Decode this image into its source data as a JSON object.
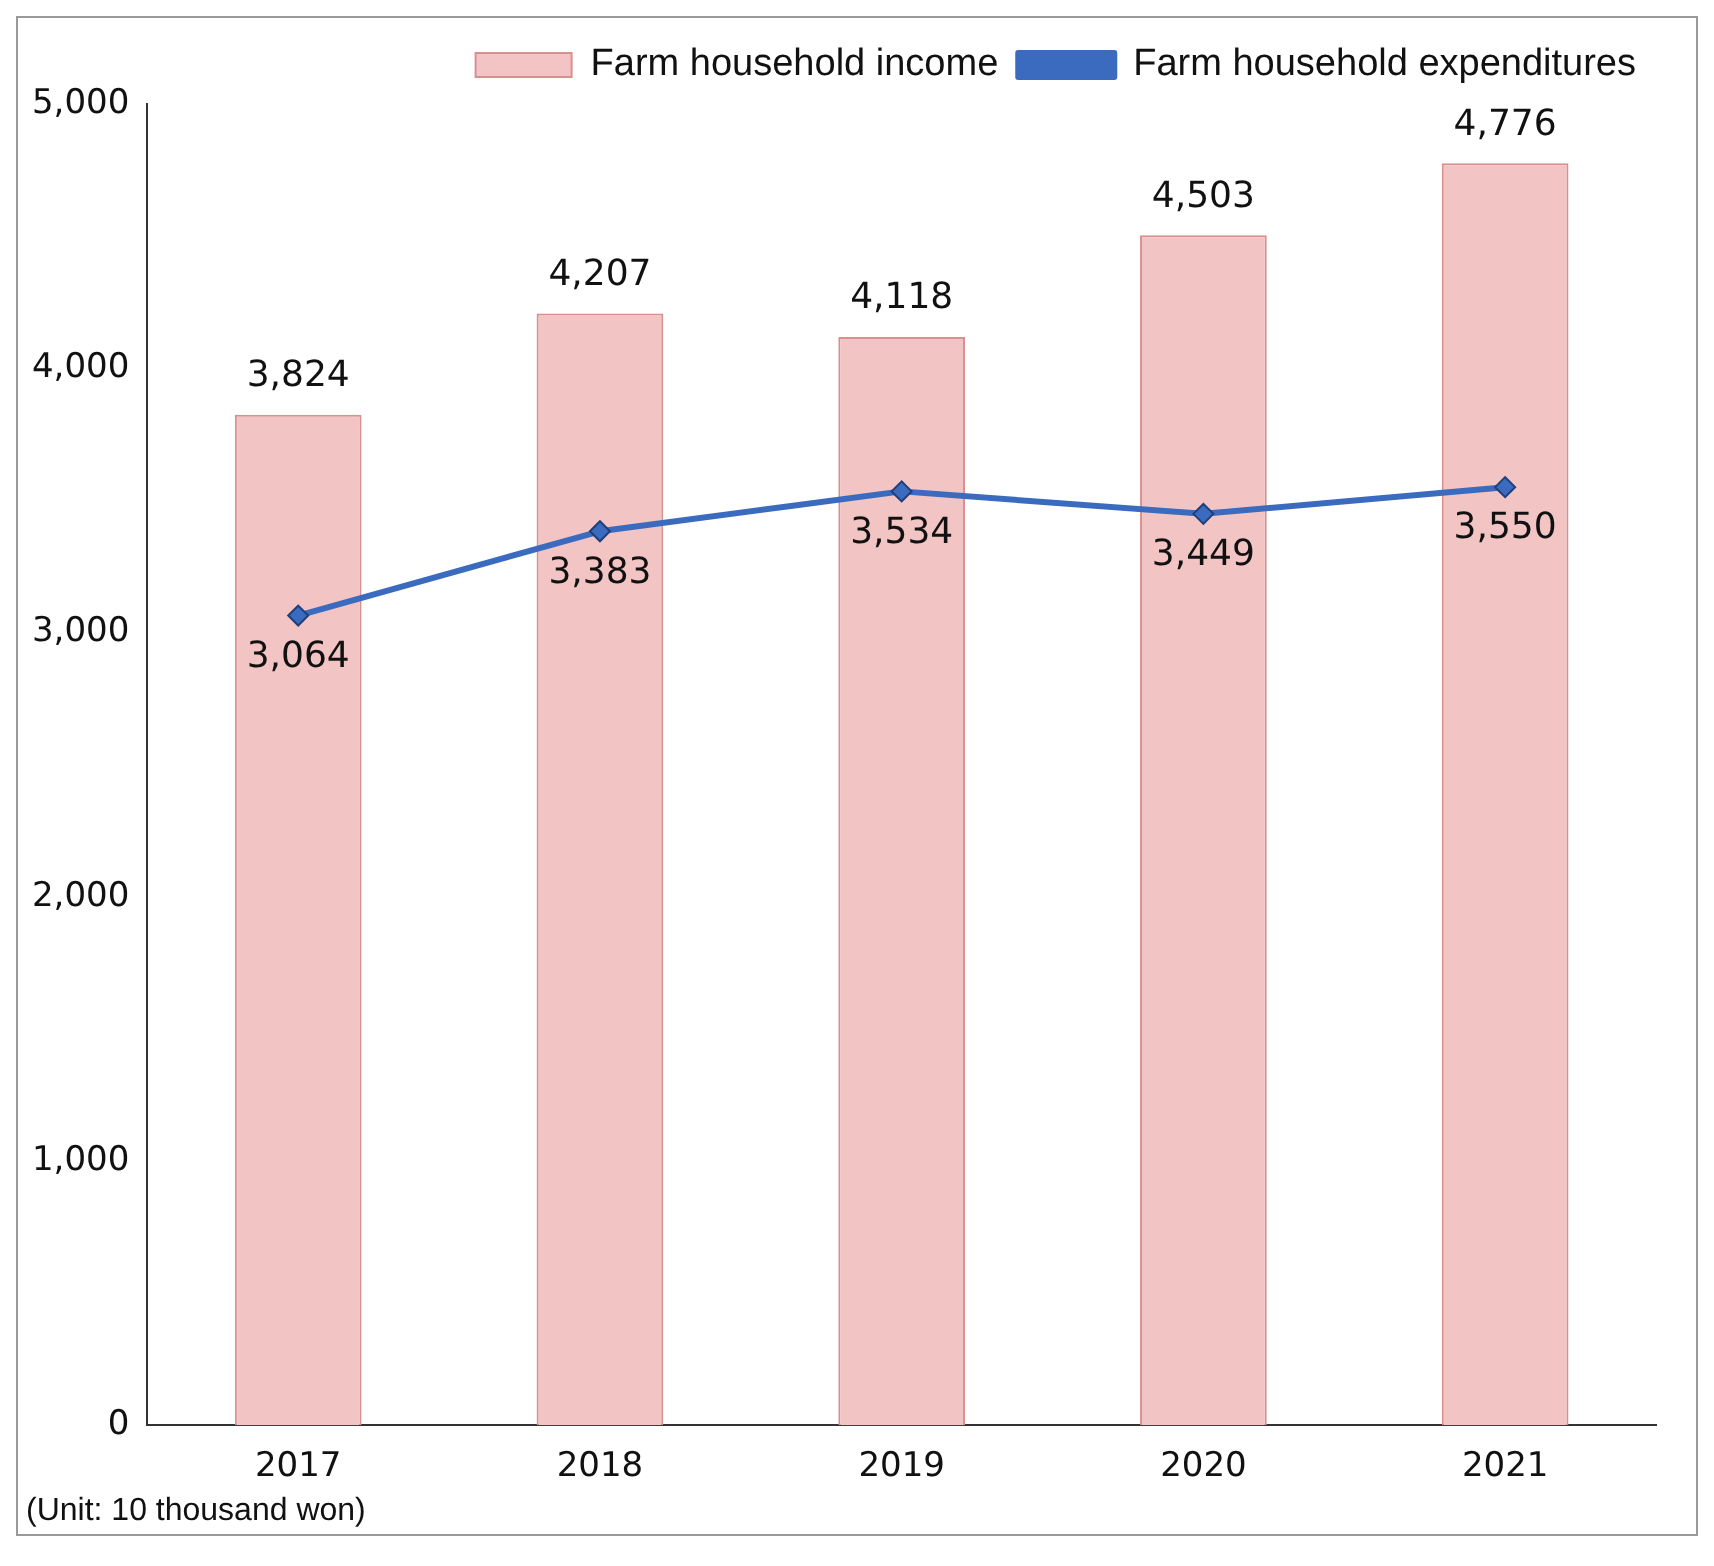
{
  "chart_data": {
    "type": "bar",
    "categories": [
      "2017",
      "2018",
      "2019",
      "2020",
      "2021"
    ],
    "series": [
      {
        "name": "Farm household income",
        "color": "#f2c4c4",
        "values": [
          3824,
          4207,
          4118,
          4503,
          4776
        ],
        "value_labels": [
          "3,824",
          "4,207",
          "4,118",
          "4,503",
          "4,776"
        ]
      },
      {
        "name": "Farm household expenditures",
        "type": "line",
        "color": "#3a6bbf",
        "values": [
          3064,
          3383,
          3534,
          3449,
          3550
        ],
        "value_labels": [
          "3,064",
          "3,383",
          "3,534",
          "3,449",
          "3,550"
        ]
      }
    ],
    "ylim": [
      0,
      5000
    ],
    "yticks": [
      {
        "value": 0,
        "label": "0"
      },
      {
        "value": 1000,
        "label": "1,000"
      },
      {
        "value": 2000,
        "label": "2,000"
      },
      {
        "value": 3000,
        "label": "3,000"
      },
      {
        "value": 4000,
        "label": "4,000"
      },
      {
        "value": 5000,
        "label": "5,000"
      }
    ],
    "legend": "top",
    "marker": "diamond",
    "grid": false,
    "annotations": [
      "(Unit: 10 thousand won)"
    ]
  }
}
